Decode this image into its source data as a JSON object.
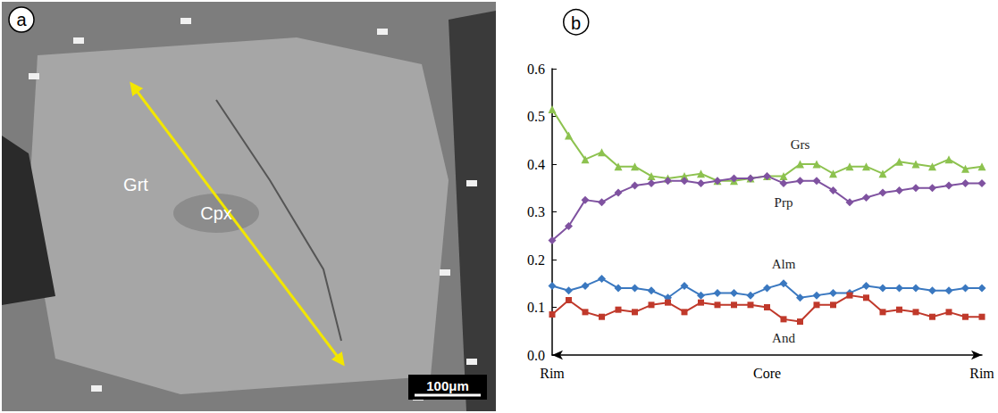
{
  "image_panel": {
    "panel": "a",
    "labels": [
      "Grt",
      "Cpx"
    ],
    "scale_bar": "100μm"
  },
  "chart_data": {
    "type": "line",
    "panel": "b",
    "categories": [
      "Rim",
      null,
      null,
      null,
      null,
      null,
      null,
      null,
      null,
      null,
      null,
      null,
      null,
      "Core",
      null,
      null,
      null,
      null,
      null,
      null,
      null,
      null,
      null,
      null,
      null,
      null,
      "Rim"
    ],
    "series": [
      {
        "name": "Grs",
        "color": "#8dc24f",
        "marker": "triangle",
        "values": [
          0.515,
          0.46,
          0.41,
          0.425,
          0.395,
          0.395,
          0.375,
          0.37,
          0.375,
          0.38,
          0.365,
          0.365,
          0.37,
          0.375,
          0.375,
          0.4,
          0.4,
          0.38,
          0.395,
          0.395,
          0.38,
          0.405,
          0.4,
          0.395,
          0.41,
          0.39,
          0.395
        ]
      },
      {
        "name": "Prp",
        "color": "#7f52a0",
        "marker": "diamond",
        "values": [
          0.24,
          0.27,
          0.325,
          0.32,
          0.34,
          0.355,
          0.36,
          0.365,
          0.365,
          0.36,
          0.365,
          0.37,
          0.37,
          0.375,
          0.36,
          0.365,
          0.365,
          0.345,
          0.32,
          0.33,
          0.34,
          0.345,
          0.35,
          0.35,
          0.355,
          0.36,
          0.36
        ]
      },
      {
        "name": "Alm",
        "color": "#3a78c0",
        "marker": "diamond",
        "values": [
          0.145,
          0.135,
          0.145,
          0.16,
          0.14,
          0.14,
          0.135,
          0.12,
          0.145,
          0.125,
          0.13,
          0.13,
          0.125,
          0.14,
          0.15,
          0.12,
          0.125,
          0.13,
          0.13,
          0.145,
          0.14,
          0.14,
          0.14,
          0.135,
          0.135,
          0.14,
          0.14
        ]
      },
      {
        "name": "And",
        "color": "#c0392b",
        "marker": "square",
        "values": [
          0.085,
          0.115,
          0.09,
          0.08,
          0.095,
          0.09,
          0.105,
          0.11,
          0.09,
          0.11,
          0.105,
          0.105,
          0.105,
          0.1,
          0.075,
          0.07,
          0.105,
          0.105,
          0.125,
          0.12,
          0.09,
          0.095,
          0.09,
          0.08,
          0.09,
          0.08,
          0.08
        ]
      }
    ],
    "ylim": [
      0,
      0.6
    ],
    "yticks": [
      {
        "value": 0,
        "label": "0.0"
      },
      0.1,
      0.2,
      0.3,
      0.4,
      0.5,
      0.6
    ],
    "grid": false
  }
}
